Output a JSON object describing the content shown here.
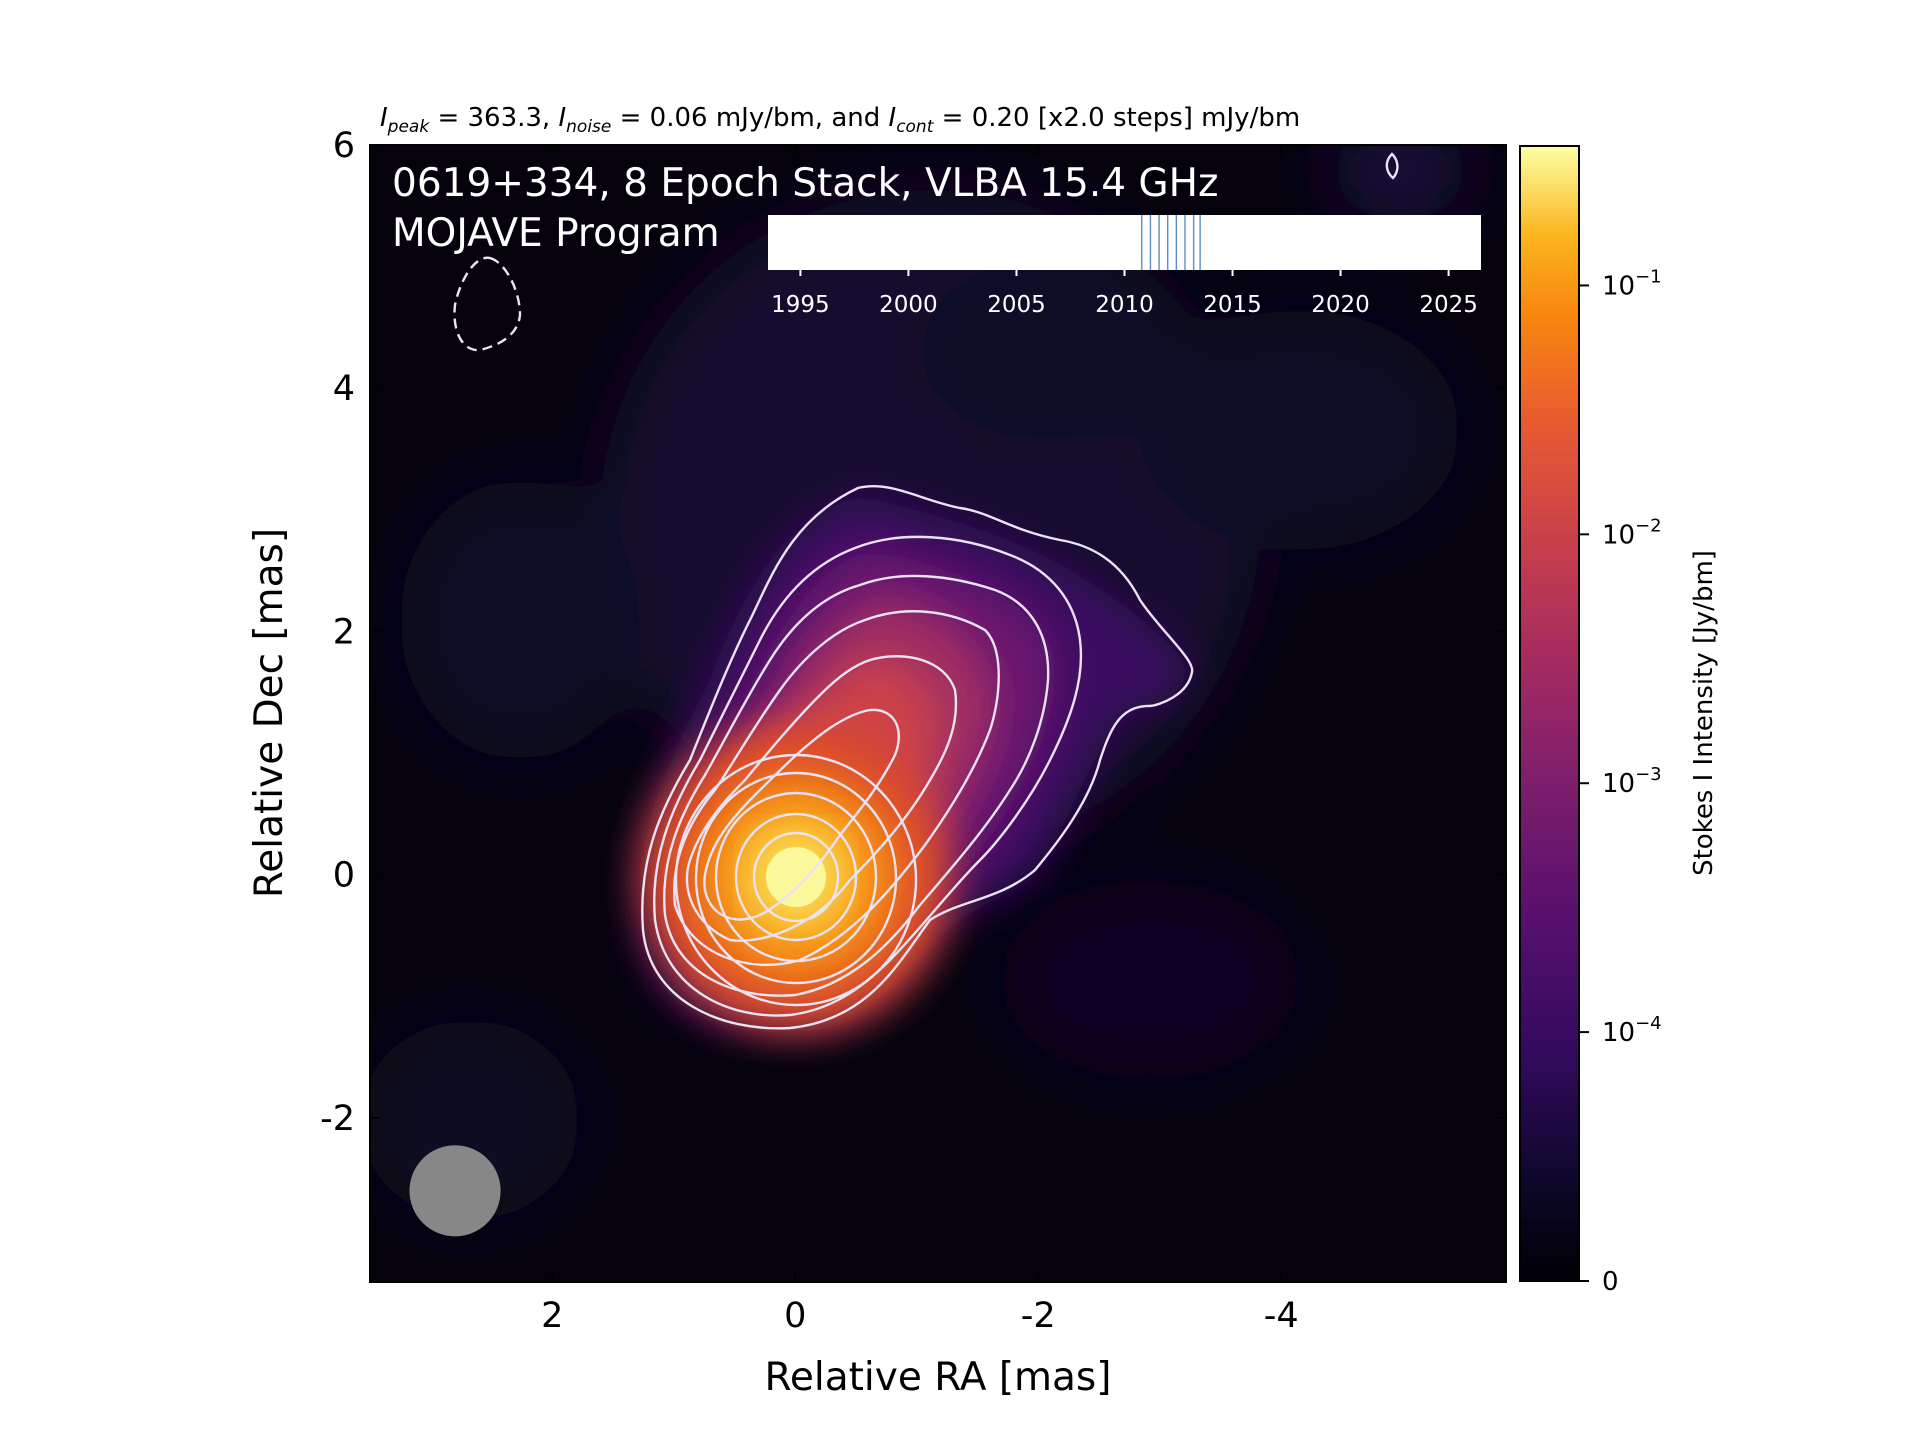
{
  "chart_data": {
    "type": "heatmap",
    "title": "I_peak = 363.3, I_noise = 0.06 mJy/bm, and I_cont = 0.20 [x2.0 steps] mJy/bm",
    "title_parts": {
      "peak_sym": "I",
      "peak_sub": "peak",
      "peak_text": " = 363.3, ",
      "noise_sym": "I",
      "noise_sub": "noise",
      "noise_text": " = 0.06 mJy/bm, and ",
      "cont_sym": "I",
      "cont_sub": "cont",
      "cont_text": " = 0.20 [x2.0 steps] mJy/bm"
    },
    "annotation_line1": "0619+334, 8 Epoch Stack, VLBA 15.4 GHz",
    "annotation_line2": "MOJAVE Program",
    "xlabel": "Relative RA [mas]",
    "ylabel": "Relative Dec [mas]",
    "xlim": [
      3.5,
      -5.85
    ],
    "ylim": [
      -3.35,
      6.0
    ],
    "xticks": [
      2,
      0,
      -2,
      -4
    ],
    "xtick_labels": [
      "2",
      "0",
      "-2",
      "-4"
    ],
    "yticks": [
      -2,
      0,
      2,
      4,
      6
    ],
    "ytick_labels": [
      "-2",
      "0",
      "2",
      "4",
      "6"
    ],
    "colorbar": {
      "label": "Stokes I Intensity [Jy/bm]",
      "scale": "symlog",
      "colormap": "inferno",
      "max": 0.3633,
      "ticks": [
        0,
        0.0001,
        0.001,
        0.01,
        0.1
      ],
      "tick_bases": [
        "0",
        "10",
        "10",
        "10",
        "10"
      ],
      "tick_exps": [
        "",
        "−4",
        "−3",
        "−2",
        "−1"
      ]
    },
    "contours": {
      "base_jy": 0.0002,
      "step_factor": 2.0,
      "levels_jy": [
        -0.0002,
        0.0002,
        0.0004,
        0.0008,
        0.0016,
        0.0032,
        0.0064,
        0.0128,
        0.0256,
        0.0512,
        0.1024,
        0.2048
      ],
      "color": "#ebe3f3",
      "negative_style": "dashed"
    },
    "beam": {
      "x": 2.8,
      "y": -2.6,
      "major_mas": 0.75,
      "minor_mas": 0.75,
      "color": "#878787"
    },
    "core": {
      "x": 0.0,
      "y": 0.0,
      "peak_jy": 0.3633
    },
    "epoch_timeline": {
      "xlim": [
        1993.5,
        2026.5
      ],
      "ticks": [
        1995,
        2000,
        2005,
        2010,
        2015,
        2020,
        2025
      ],
      "tick_labels": [
        "1995",
        "2000",
        "2005",
        "2010",
        "2015",
        "2020",
        "2025"
      ],
      "epochs": [
        2010.8,
        2011.2,
        2011.6,
        2012.0,
        2012.4,
        2012.8,
        2013.2,
        2013.5
      ],
      "epoch_color": "#5b8fc2"
    }
  }
}
